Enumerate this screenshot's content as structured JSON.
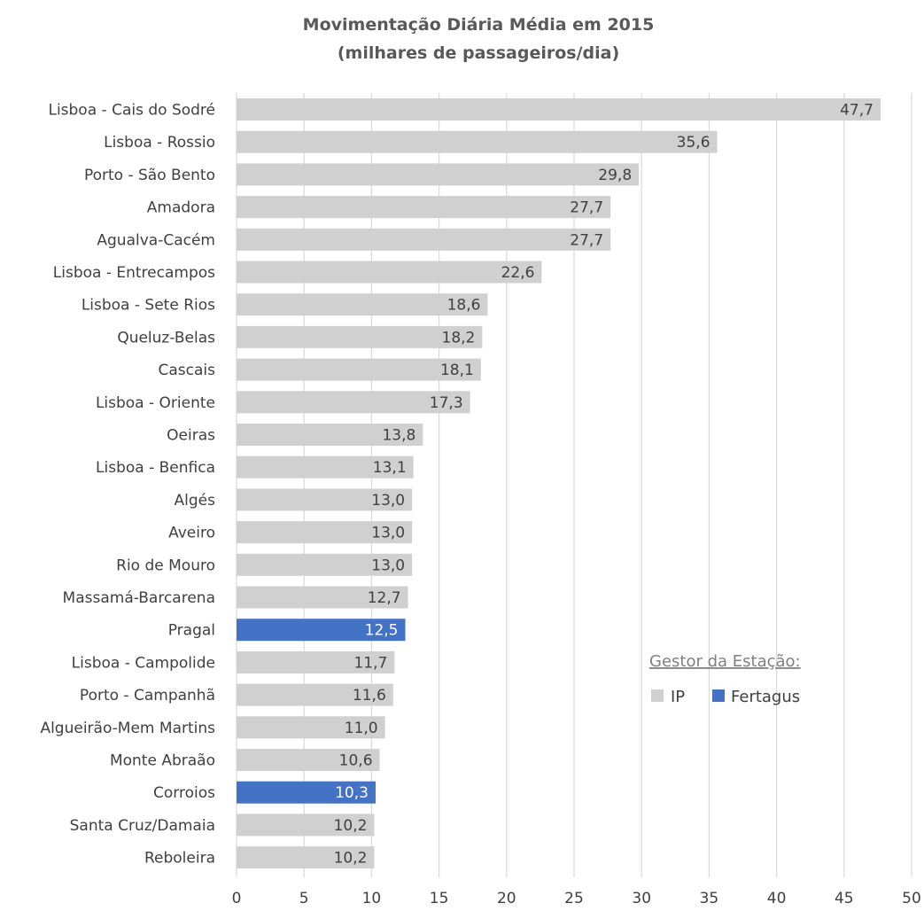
{
  "chart_data": {
    "type": "bar",
    "orientation": "horizontal",
    "title_line1": "Movimentação Diária Média em 2015",
    "title_line2": "(milhares de passageiros/dia)",
    "categories": [
      "Lisboa - Cais do Sodré",
      "Lisboa - Rossio",
      "Porto - São Bento",
      "Amadora",
      "Agualva-Cacém",
      "Lisboa - Entrecampos",
      "Lisboa - Sete Rios",
      "Queluz-Belas",
      "Cascais",
      "Lisboa - Oriente",
      "Oeiras",
      "Lisboa - Benfica",
      "Algés",
      "Aveiro",
      "Rio de Mouro",
      "Massamá-Barcarena",
      "Pragal",
      "Lisboa - Campolide",
      "Porto - Campanhã",
      "Algueirão-Mem Martins",
      "Monte Abraão",
      "Corroios",
      "Santa Cruz/Damaia",
      "Reboleira"
    ],
    "values": [
      47.7,
      35.6,
      29.8,
      27.7,
      27.7,
      22.6,
      18.6,
      18.2,
      18.1,
      17.3,
      13.8,
      13.1,
      13.0,
      13.0,
      13.0,
      12.7,
      12.5,
      11.7,
      11.6,
      11.0,
      10.6,
      10.3,
      10.2,
      10.2
    ],
    "value_labels": [
      "47,7",
      "35,6",
      "29,8",
      "27,7",
      "27,7",
      "22,6",
      "18,6",
      "18,2",
      "18,1",
      "17,3",
      "13,8",
      "13,1",
      "13,0",
      "13,0",
      "13,0",
      "12,7",
      "12,5",
      "11,7",
      "11,6",
      "11,0",
      "10,6",
      "10,3",
      "10,2",
      "10,2"
    ],
    "groups": [
      "IP",
      "IP",
      "IP",
      "IP",
      "IP",
      "IP",
      "IP",
      "IP",
      "IP",
      "IP",
      "IP",
      "IP",
      "IP",
      "IP",
      "IP",
      "IP",
      "Fertagus",
      "IP",
      "IP",
      "IP",
      "IP",
      "Fertagus",
      "IP",
      "IP"
    ],
    "xlim": [
      0,
      50
    ],
    "xticks": [
      0,
      5,
      10,
      15,
      20,
      25,
      30,
      35,
      40,
      45,
      50
    ],
    "grid": "vertical",
    "legend": {
      "title": "Gestor da Estação:",
      "placement": "right-center",
      "entries": [
        {
          "name": "IP",
          "color": "#d0d0d0"
        },
        {
          "name": "Fertagus",
          "color": "#4472c4"
        }
      ]
    },
    "colors": {
      "IP": "#d0d0d0",
      "Fertagus": "#4472c4",
      "grid": "#d9d9d9",
      "label_dark": "#404040",
      "label_light": "#ffffff"
    }
  }
}
